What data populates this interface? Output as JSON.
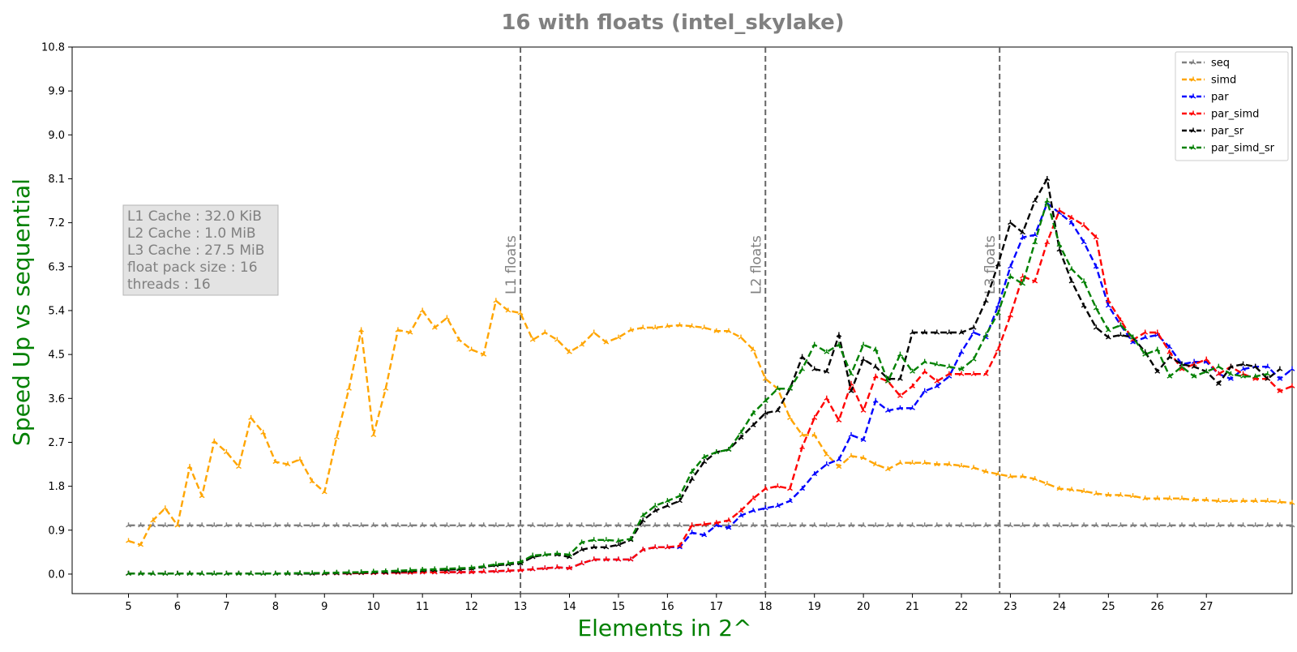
{
  "chart_data": {
    "type": "line",
    "title": "16 with floats  (intel_skylake)",
    "xlabel": "Elements in 2^",
    "ylabel": "Speed Up vs sequential",
    "xlim": [
      3.85,
      28.75
    ],
    "ylim": [
      -0.4,
      10.8
    ],
    "xticks": [
      5,
      6,
      7,
      8,
      9,
      10,
      11,
      12,
      13,
      14,
      15,
      16,
      17,
      18,
      19,
      20,
      21,
      22,
      23,
      24,
      25,
      26,
      27
    ],
    "yticks": [
      0.0,
      0.9,
      1.8,
      2.7,
      3.6,
      4.5,
      5.4,
      6.3,
      7.2,
      8.1,
      9.0,
      9.9,
      10.8
    ],
    "ytick_labels": [
      "0.0",
      "0.9",
      "1.8",
      "2.7",
      "3.6",
      "4.5",
      "5.4",
      "6.3",
      "7.2",
      "8.1",
      "9.0",
      "9.9",
      "10.8"
    ],
    "grid": false,
    "legend_position": "top-right",
    "info_box": [
      "L1 Cache : 32.0 KiB",
      "L2 Cache : 1.0 MiB",
      "L3 Cache : 27.5 MiB",
      "float pack size : 16",
      "threads : 16"
    ],
    "vlines": [
      {
        "x": 13.0,
        "label": "L1 floats"
      },
      {
        "x": 18.0,
        "label": "L2 floats"
      },
      {
        "x": 22.78,
        "label": "L3 floats"
      }
    ],
    "x_start": 5,
    "x_step": 0.25,
    "series": [
      {
        "name": "seq",
        "color": "#808080",
        "values": [
          1,
          1,
          1,
          1,
          1,
          1,
          1,
          1,
          1,
          1,
          1,
          1,
          1,
          1,
          1,
          1,
          1,
          1,
          1,
          1,
          1,
          1,
          1,
          1,
          1,
          1,
          1,
          1,
          1,
          1,
          1,
          1,
          1,
          1,
          1,
          1,
          1,
          1,
          1,
          1,
          1,
          1,
          1,
          1,
          1,
          1,
          1,
          1,
          1,
          1,
          1,
          1,
          1,
          1,
          1,
          1,
          1,
          1,
          1,
          1,
          1,
          1,
          1,
          1,
          1,
          1,
          1,
          1,
          1,
          1,
          1,
          1,
          1,
          1,
          1,
          1,
          1,
          1,
          1,
          1,
          1,
          1,
          1,
          1,
          1,
          1,
          1,
          1,
          1,
          1,
          1,
          1,
          1,
          1,
          1,
          1
        ]
      },
      {
        "name": "simd",
        "color": "#ffa500",
        "values": [
          0.68,
          0.6,
          1.1,
          1.35,
          1.0,
          2.2,
          1.6,
          2.72,
          2.5,
          2.2,
          3.2,
          2.9,
          2.3,
          2.25,
          2.35,
          1.9,
          1.68,
          2.8,
          3.8,
          5.0,
          2.85,
          3.8,
          5.0,
          4.95,
          5.4,
          5.05,
          5.25,
          4.8,
          4.6,
          4.5,
          5.6,
          5.4,
          5.35,
          4.8,
          4.95,
          4.8,
          4.55,
          4.7,
          4.95,
          4.75,
          4.85,
          5.0,
          5.05,
          5.05,
          5.08,
          5.1,
          5.08,
          5.05,
          4.98,
          4.98,
          4.85,
          4.6,
          4.0,
          3.8,
          3.2,
          2.85,
          2.85,
          2.45,
          2.2,
          2.42,
          2.38,
          2.25,
          2.15,
          2.28,
          2.28,
          2.28,
          2.25,
          2.25,
          2.22,
          2.18,
          2.1,
          2.05,
          2.0,
          2.0,
          1.95,
          1.85,
          1.75,
          1.73,
          1.7,
          1.65,
          1.62,
          1.62,
          1.6,
          1.55,
          1.55,
          1.55,
          1.55,
          1.52,
          1.52,
          1.5,
          1.5,
          1.5,
          1.5,
          1.5,
          1.48,
          1.46
        ]
      },
      {
        "name": "par",
        "color": "#0000ff",
        "values": [
          0.01,
          0.01,
          0.01,
          0.01,
          0.01,
          0.01,
          0.01,
          0.01,
          0.01,
          0.01,
          0.01,
          0.01,
          0.01,
          0.01,
          0.01,
          0.01,
          0.01,
          0.015,
          0.015,
          0.02,
          0.02,
          0.025,
          0.03,
          0.03,
          0.035,
          0.035,
          0.04,
          0.04,
          0.04,
          0.05,
          0.06,
          0.07,
          0.08,
          0.1,
          0.12,
          0.14,
          0.12,
          0.22,
          0.3,
          0.3,
          0.3,
          0.3,
          0.5,
          0.55,
          0.55,
          0.55,
          0.85,
          0.8,
          1.0,
          0.95,
          1.2,
          1.3,
          1.35,
          1.4,
          1.5,
          1.75,
          2.05,
          2.25,
          2.35,
          2.85,
          2.75,
          3.55,
          3.35,
          3.4,
          3.4,
          3.75,
          3.85,
          4.05,
          4.55,
          4.95,
          4.85,
          5.5,
          6.3,
          6.9,
          6.95,
          7.6,
          7.4,
          7.2,
          6.8,
          6.3,
          5.5,
          5.1,
          4.75,
          4.85,
          4.9,
          4.65,
          4.3,
          4.35,
          4.35,
          4.1,
          4.0,
          4.2,
          4.25,
          4.25,
          4.0,
          4.2
        ]
      },
      {
        "name": "par_simd",
        "color": "#ff0000",
        "values": [
          0.01,
          0.01,
          0.01,
          0.01,
          0.01,
          0.01,
          0.01,
          0.01,
          0.01,
          0.01,
          0.01,
          0.01,
          0.01,
          0.01,
          0.01,
          0.01,
          0.01,
          0.015,
          0.015,
          0.02,
          0.02,
          0.025,
          0.03,
          0.03,
          0.035,
          0.035,
          0.04,
          0.04,
          0.04,
          0.05,
          0.06,
          0.07,
          0.08,
          0.1,
          0.12,
          0.14,
          0.12,
          0.22,
          0.3,
          0.3,
          0.3,
          0.3,
          0.5,
          0.55,
          0.55,
          0.58,
          1.0,
          1.02,
          1.05,
          1.1,
          1.3,
          1.55,
          1.75,
          1.8,
          1.75,
          2.6,
          3.2,
          3.6,
          3.15,
          3.9,
          3.35,
          4.05,
          3.95,
          3.65,
          3.85,
          4.15,
          3.95,
          4.1,
          4.1,
          4.1,
          4.1,
          4.6,
          5.3,
          6.1,
          6.0,
          6.8,
          7.45,
          7.3,
          7.15,
          6.9,
          5.6,
          5.2,
          4.8,
          4.95,
          4.95,
          4.55,
          4.2,
          4.3,
          4.4,
          4.1,
          4.25,
          4.1,
          4.0,
          4.0,
          3.75,
          3.85
        ]
      },
      {
        "name": "par_sr",
        "color": "#000000",
        "values": [
          0.01,
          0.01,
          0.01,
          0.01,
          0.01,
          0.01,
          0.01,
          0.01,
          0.01,
          0.01,
          0.01,
          0.01,
          0.01,
          0.01,
          0.01,
          0.01,
          0.015,
          0.02,
          0.025,
          0.03,
          0.035,
          0.04,
          0.05,
          0.06,
          0.07,
          0.08,
          0.09,
          0.1,
          0.11,
          0.15,
          0.18,
          0.2,
          0.22,
          0.35,
          0.4,
          0.4,
          0.35,
          0.5,
          0.55,
          0.55,
          0.6,
          0.7,
          1.1,
          1.3,
          1.4,
          1.5,
          1.95,
          2.3,
          2.5,
          2.55,
          2.8,
          3.05,
          3.3,
          3.35,
          3.8,
          4.45,
          4.2,
          4.15,
          4.9,
          3.75,
          4.4,
          4.25,
          4.0,
          4.0,
          4.95,
          4.95,
          4.95,
          4.95,
          4.95,
          5.05,
          5.6,
          6.35,
          7.2,
          7.0,
          7.65,
          8.1,
          6.65,
          6.0,
          5.5,
          5.05,
          4.85,
          4.9,
          4.85,
          4.55,
          4.15,
          4.45,
          4.3,
          4.25,
          4.15,
          3.9,
          4.25,
          4.3,
          4.25,
          4.0,
          4.2
        ]
      },
      {
        "name": "par_simd_sr",
        "color": "#008000",
        "values": [
          0.01,
          0.01,
          0.01,
          0.01,
          0.01,
          0.01,
          0.01,
          0.01,
          0.01,
          0.01,
          0.01,
          0.01,
          0.01,
          0.015,
          0.02,
          0.02,
          0.025,
          0.03,
          0.035,
          0.04,
          0.05,
          0.06,
          0.07,
          0.08,
          0.09,
          0.1,
          0.11,
          0.12,
          0.13,
          0.16,
          0.2,
          0.22,
          0.25,
          0.38,
          0.4,
          0.42,
          0.4,
          0.65,
          0.7,
          0.7,
          0.68,
          0.72,
          1.2,
          1.4,
          1.5,
          1.6,
          2.1,
          2.4,
          2.5,
          2.55,
          2.9,
          3.3,
          3.55,
          3.8,
          3.8,
          4.2,
          4.7,
          4.55,
          4.7,
          4.1,
          4.7,
          4.6,
          3.95,
          4.5,
          4.15,
          4.35,
          4.3,
          4.25,
          4.2,
          4.4,
          4.9,
          5.35,
          6.1,
          5.95,
          6.8,
          7.65,
          6.75,
          6.25,
          6.0,
          5.45,
          5.0,
          5.1,
          4.85,
          4.5,
          4.6,
          4.05,
          4.25,
          4.05,
          4.15,
          4.25,
          4.1,
          4.05,
          4.05,
          4.1
        ]
      }
    ]
  }
}
